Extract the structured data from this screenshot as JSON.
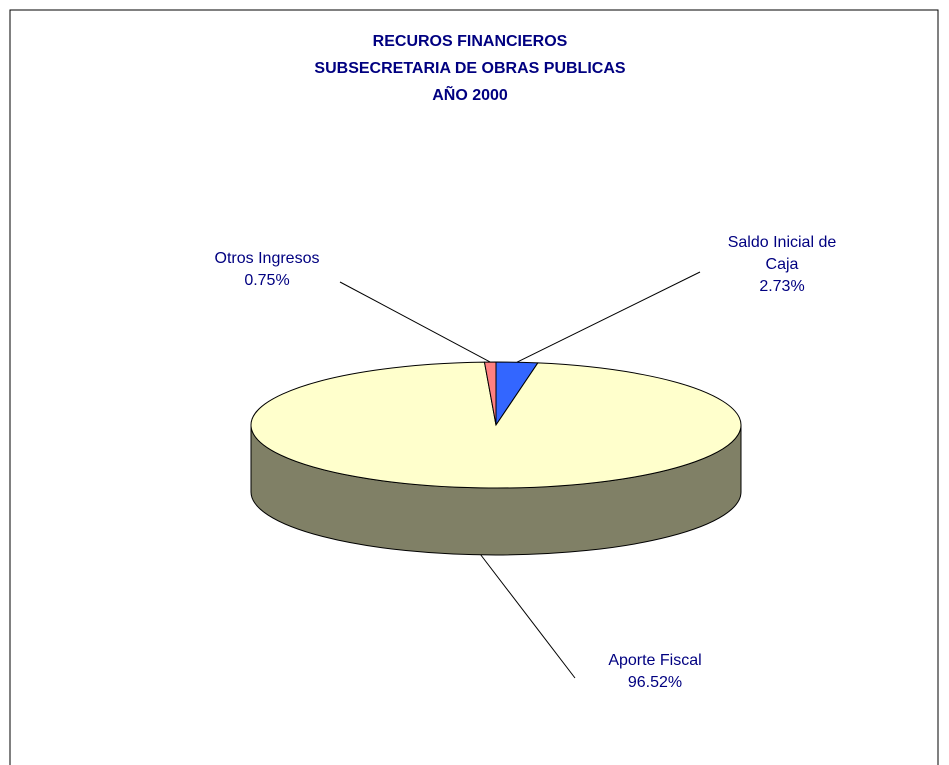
{
  "chart_data": {
    "type": "pie3d",
    "title": [
      "RECUROS FINANCIEROS",
      "SUBSECRETARIA DE OBRAS PUBLICAS",
      "AÑO 2000"
    ],
    "categories": [
      "Saldo Inicial de Caja",
      "Aporte Fiscal",
      "Otros Ingresos"
    ],
    "values": [
      2.73,
      96.52,
      0.75
    ],
    "value_labels": [
      "2.73%",
      "96.52%",
      "0.75%"
    ],
    "colors": [
      "#3366ff",
      "#ffffcc",
      "#ff8080"
    ]
  }
}
